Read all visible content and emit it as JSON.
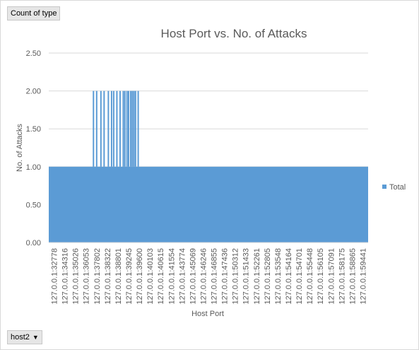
{
  "pivot": {
    "values_field": "Count of type",
    "axis_field": "host2"
  },
  "colors": {
    "series": "#5b9bd5",
    "grid": "#d9d9d9",
    "text": "#595959"
  },
  "chart_data": {
    "type": "area",
    "title": "Host Port vs. No. of Attacks",
    "xlabel": "Host Port",
    "ylabel": "No. of Attacks",
    "ylim": [
      0,
      2.5
    ],
    "yticks": [
      "0.00",
      "0.50",
      "1.00",
      "1.50",
      "2.00",
      "2.50"
    ],
    "grid": true,
    "legend_position": "right",
    "x_tick_labels": [
      "127.0.0.1:32778",
      "127.0.0.1:34316",
      "127.0.0.1:35026",
      "127.0.0.1:36053",
      "127.0.0.1:37802",
      "127.0.0.1:38322",
      "127.0.0.1:38801",
      "127.0.0.1:39245",
      "127.0.0.1:39600",
      "127.0.0.1:40103",
      "127.0.0.1:40615",
      "127.0.0.1:41554",
      "127.0.0.1:43774",
      "127.0.0.1:45069",
      "127.0.0.1:46246",
      "127.0.0.1:46855",
      "127.0.0.1:47436",
      "127.0.0.1:50312",
      "127.0.0.1:51433",
      "127.0.0.1:52261",
      "127.0.0.1:52805",
      "127.0.0.1:53548",
      "127.0.0.1:54164",
      "127.0.0.1:54701",
      "127.0.0.1:55448",
      "127.0.0.1:56105",
      "127.0.0.1:57091",
      "127.0.0.1:58175",
      "127.0.0.1:58865",
      "127.0.0.1:59441"
    ],
    "series": [
      {
        "name": "Total",
        "baseline": 1,
        "spikes": [
          {
            "x": 4.2,
            "y": 2
          },
          {
            "x": 4.5,
            "y": 2
          },
          {
            "x": 4.9,
            "y": 2
          },
          {
            "x": 5.2,
            "y": 2
          },
          {
            "x": 5.6,
            "y": 2
          },
          {
            "x": 5.9,
            "y": 2
          },
          {
            "x": 6.1,
            "y": 2
          },
          {
            "x": 6.4,
            "y": 2
          },
          {
            "x": 6.7,
            "y": 2
          },
          {
            "x": 7.0,
            "y": 2
          },
          {
            "x": 7.15,
            "y": 2
          },
          {
            "x": 7.35,
            "y": 2
          },
          {
            "x": 7.5,
            "y": 2
          },
          {
            "x": 7.7,
            "y": 2
          },
          {
            "x": 7.85,
            "y": 2
          },
          {
            "x": 8.0,
            "y": 2
          },
          {
            "x": 8.15,
            "y": 2
          },
          {
            "x": 8.4,
            "y": 2
          }
        ]
      }
    ]
  }
}
